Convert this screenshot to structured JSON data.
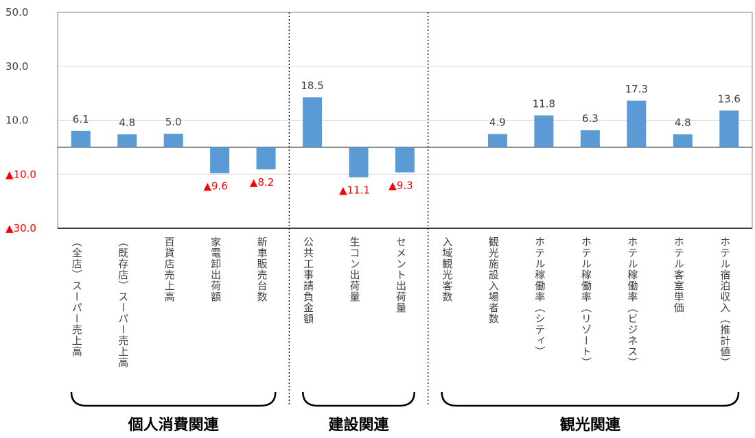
{
  "chart_data": {
    "type": "bar",
    "title": "",
    "xlabel": "",
    "ylabel": "",
    "ylim": [
      -30,
      50
    ],
    "grid": true,
    "y_ticks": [
      {
        "value": 50,
        "label": "50.0"
      },
      {
        "value": 30,
        "label": "30.0"
      },
      {
        "value": 10,
        "label": "10.0"
      },
      {
        "value": -10,
        "label": "▲10.0"
      },
      {
        "value": -30,
        "label": "▲30.0"
      }
    ],
    "categories": [
      "（全店）スーパー売上高",
      "（既存店）スーパー売上高",
      "百貨店売上高",
      "家電卸出荷額",
      "新車販売台数",
      "公共工事請負金額",
      "生コン出荷量",
      "セメント出荷量",
      "入域観光客数",
      "観光施設入場者数",
      "ホテル稼働率（シティ）",
      "ホテル稼働率（リゾート）",
      "ホテル稼働率（ビジネス）",
      "ホテル客室単価",
      "ホテル宿泊収入（推計値）"
    ],
    "values": [
      6.1,
      4.8,
      5.0,
      -9.6,
      -8.2,
      18.5,
      -11.1,
      -9.3,
      null,
      4.9,
      11.8,
      6.3,
      17.3,
      4.8,
      13.6
    ],
    "value_labels": [
      "6.1",
      "4.8",
      "5.0",
      "▲9.6",
      "▲8.2",
      "18.5",
      "▲11.1",
      "▲9.3",
      "",
      "4.9",
      "11.8",
      "6.3",
      "17.3",
      "4.8",
      "13.6"
    ],
    "groups": [
      {
        "label": "個人消費関連",
        "start": 0,
        "end": 4
      },
      {
        "label": "建設関連",
        "start": 5,
        "end": 7
      },
      {
        "label": "観光関連",
        "start": 8,
        "end": 14
      }
    ],
    "colors": {
      "bar": "#5b9bd5",
      "negative_text": "#ff0000",
      "text": "#404040",
      "axis": "#000000",
      "grid": "#d9d9d9"
    }
  }
}
